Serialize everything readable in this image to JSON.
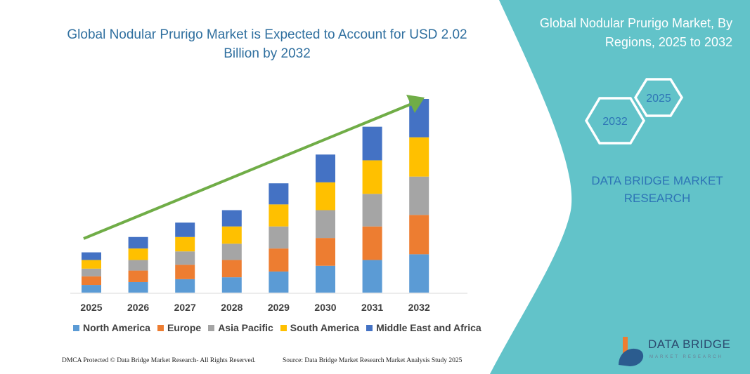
{
  "header": {
    "title": "Global Nodular Prurigo Market is Expected to Account for USD 2.02 Billion by 2032"
  },
  "side_panel": {
    "title": "Global Nodular Prurigo Market, By Regions, 2025 to 2032",
    "hex_start": "2025",
    "hex_end": "2032",
    "brand": "DATA BRIDGE MARKET RESEARCH",
    "color": "#62c3c9"
  },
  "chart_data": {
    "type": "bar",
    "stacked": true,
    "title": "",
    "xlabel": "",
    "ylabel": "",
    "ylim": [
      0,
      2.02
    ],
    "grid": false,
    "legend_position": "bottom",
    "categories": [
      "2025",
      "2026",
      "2027",
      "2028",
      "2029",
      "2030",
      "2031",
      "2032"
    ],
    "series": [
      {
        "name": "North America",
        "color": "#5b9bd5",
        "values": [
          0.08,
          0.11,
          0.14,
          0.16,
          0.22,
          0.28,
          0.34,
          0.4
        ]
      },
      {
        "name": "Europe",
        "color": "#ed7d31",
        "values": [
          0.09,
          0.12,
          0.15,
          0.18,
          0.24,
          0.29,
          0.35,
          0.41
        ]
      },
      {
        "name": "Asia Pacific",
        "color": "#a5a5a5",
        "values": [
          0.08,
          0.11,
          0.14,
          0.17,
          0.23,
          0.29,
          0.34,
          0.4
        ]
      },
      {
        "name": "South America",
        "color": "#ffc000",
        "values": [
          0.09,
          0.12,
          0.15,
          0.18,
          0.23,
          0.29,
          0.35,
          0.41
        ]
      },
      {
        "name": "Middle East and Africa",
        "color": "#4472c4",
        "values": [
          0.08,
          0.12,
          0.15,
          0.17,
          0.22,
          0.29,
          0.35,
          0.4
        ]
      }
    ],
    "trend_arrow_color": "#70ad47"
  },
  "footer": {
    "copyright": "DMCA Protected © Data Bridge Market Research-  All Rights Reserved.",
    "source": "Source: Data Bridge Market Research  Market Analysis Study 2025",
    "logo_text": "DATA BRIDGE",
    "logo_sub": "MARKET RESEARCH"
  }
}
